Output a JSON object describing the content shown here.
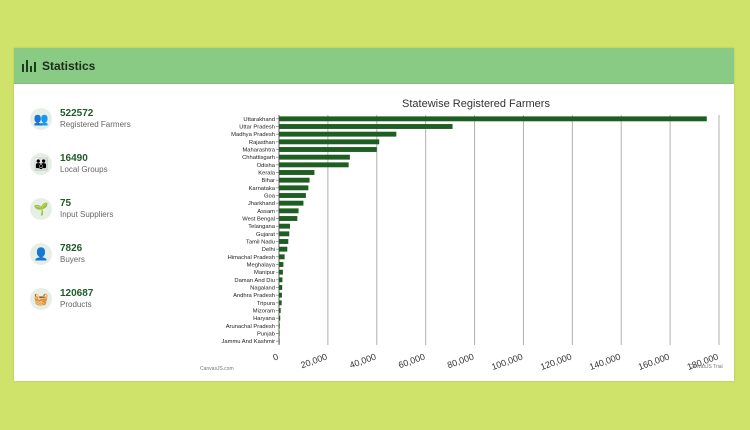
{
  "panel": {
    "title": "Statistics",
    "icon": "bar-chart-icon"
  },
  "stats": [
    {
      "value": "522572",
      "label": "Registered Farmers",
      "icon": "farmers-icon",
      "glyph": "👥"
    },
    {
      "value": "16490",
      "label": "Local Groups",
      "icon": "groups-icon",
      "glyph": "👪"
    },
    {
      "value": "75",
      "label": "Input Suppliers",
      "icon": "supplier-icon",
      "glyph": "🌱"
    },
    {
      "value": "7826",
      "label": "Buyers",
      "icon": "buyer-icon",
      "glyph": "👤"
    },
    {
      "value": "120687",
      "label": "Products",
      "icon": "basket-icon",
      "glyph": "🧺"
    }
  ],
  "chart_data": {
    "type": "bar",
    "orientation": "horizontal",
    "title": "Statewise Registered Farmers",
    "categories": [
      "Uttarakhand",
      "Uttar Pradesh",
      "Madhya Pradesh",
      "Rajasthan",
      "Maharashtra",
      "Chhattisgarh",
      "Odisha",
      "Kerala",
      "Bihar",
      "Karnataka",
      "Goa",
      "Jharkhand",
      "Assam",
      "West Bengal",
      "Telangana",
      "Gujarat",
      "Tamil Nadu",
      "Delhi",
      "Himachal Pradesh",
      "Meghalaya",
      "Manipur",
      "Daman And Diu",
      "Nagaland",
      "Andhra Pradesh",
      "Tripura",
      "Mizoram",
      "Haryana",
      "Arunachal Pradesh",
      "Punjab",
      "Jammu And Kashmir"
    ],
    "values": [
      175000,
      71000,
      48000,
      41000,
      40000,
      29000,
      28500,
      14500,
      12500,
      12000,
      11000,
      10000,
      8000,
      7500,
      4500,
      4200,
      3800,
      3400,
      2300,
      1800,
      1600,
      1400,
      1300,
      1200,
      1100,
      700,
      500,
      300,
      200,
      150
    ],
    "xlim": [
      0,
      180000
    ],
    "xticks": [
      0,
      20000,
      40000,
      60000,
      80000,
      100000,
      120000,
      140000,
      160000,
      180000
    ],
    "xtick_labels": [
      "0",
      "20,000",
      "40,000",
      "60,000",
      "80,000",
      "100,000",
      "120,000",
      "140,000",
      "160,000",
      "180,000"
    ],
    "grid": true,
    "bar_color": "#1f5e22"
  },
  "footer": {
    "left": "CanvasJS.com",
    "right": "CanvasJS Trial"
  }
}
